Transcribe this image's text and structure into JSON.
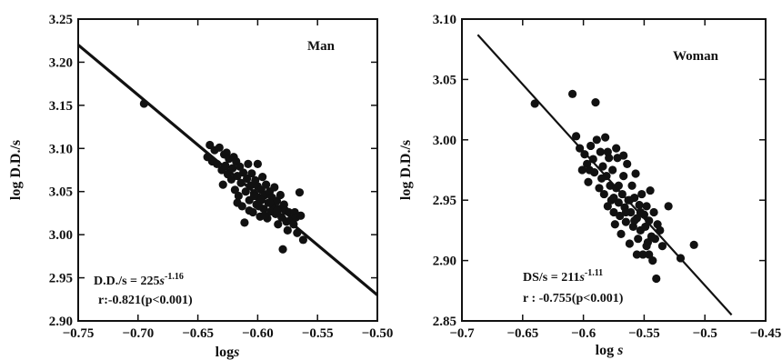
{
  "chart_data": [
    {
      "type": "scatter",
      "panel_label": "Man",
      "xlabel_base": "log",
      "xlabel_var": "s",
      "ylabel": "log D.D./s",
      "xlim": [
        -0.75,
        -0.5
      ],
      "ylim": [
        2.9,
        3.25
      ],
      "x_ticks": [
        -0.75,
        -0.7,
        -0.65,
        -0.6,
        -0.55,
        -0.5
      ],
      "x_tick_labels": [
        "−0.75",
        "−0.70",
        "−0.65",
        "−0.60",
        "−0.55",
        "−0.50"
      ],
      "y_ticks": [
        2.9,
        2.95,
        3.0,
        3.05,
        3.1,
        3.15,
        3.2,
        3.25
      ],
      "y_tick_labels": [
        "2.90",
        "2.95",
        "3.00",
        "3.05",
        "3.10",
        "3.15",
        "3.20",
        "3.25"
      ],
      "equation": {
        "lhs": "D.D./s = 225",
        "var": "s",
        "exp": "-1.16"
      },
      "correlation": "r:-0.821(p<0.001)",
      "fit_line": {
        "x": [
          -0.75,
          -0.5
        ],
        "y": [
          3.22,
          2.93
        ]
      },
      "legend_position": "none",
      "grid": false,
      "points": [
        [
          -0.695,
          3.152
        ],
        [
          -0.642,
          3.09
        ],
        [
          -0.64,
          3.104
        ],
        [
          -0.638,
          3.085
        ],
        [
          -0.636,
          3.098
        ],
        [
          -0.634,
          3.082
        ],
        [
          -0.632,
          3.101
        ],
        [
          -0.63,
          3.075
        ],
        [
          -0.629,
          3.058
        ],
        [
          -0.628,
          3.093
        ],
        [
          -0.627,
          3.08
        ],
        [
          -0.626,
          3.095
        ],
        [
          -0.625,
          3.07
        ],
        [
          -0.624,
          3.088
        ],
        [
          -0.622,
          3.064
        ],
        [
          -0.621,
          3.077
        ],
        [
          -0.62,
          3.09
        ],
        [
          -0.619,
          3.052
        ],
        [
          -0.618,
          3.085
        ],
        [
          -0.617,
          3.068
        ],
        [
          -0.616,
          3.045
        ],
        [
          -0.615,
          3.079
        ],
        [
          -0.614,
          3.06
        ],
        [
          -0.613,
          3.033
        ],
        [
          -0.612,
          3.072
        ],
        [
          -0.611,
          3.014
        ],
        [
          -0.61,
          3.05
        ],
        [
          -0.609,
          3.065
        ],
        [
          -0.608,
          3.082
        ],
        [
          -0.607,
          3.04
        ],
        [
          -0.606,
          3.057
        ],
        [
          -0.605,
          3.071
        ],
        [
          -0.604,
          3.026
        ],
        [
          -0.603,
          3.048
        ],
        [
          -0.602,
          3.063
        ],
        [
          -0.601,
          3.035
        ],
        [
          -0.6,
          3.056
        ],
        [
          -0.6,
          3.082
        ],
        [
          -0.599,
          3.043
        ],
        [
          -0.598,
          3.021
        ],
        [
          -0.597,
          3.052
        ],
        [
          -0.596,
          3.067
        ],
        [
          -0.595,
          3.03
        ],
        [
          -0.594,
          3.046
        ],
        [
          -0.593,
          3.058
        ],
        [
          -0.592,
          3.019
        ],
        [
          -0.591,
          3.037
        ],
        [
          -0.59,
          3.05
        ],
        [
          -0.589,
          3.027
        ],
        [
          -0.588,
          3.043
        ],
        [
          -0.587,
          3.033
        ],
        [
          -0.586,
          3.055
        ],
        [
          -0.585,
          3.024
        ],
        [
          -0.584,
          3.039
        ],
        [
          -0.583,
          3.012
        ],
        [
          -0.582,
          3.03
        ],
        [
          -0.581,
          3.046
        ],
        [
          -0.58,
          3.02
        ],
        [
          -0.579,
          2.983
        ],
        [
          -0.578,
          3.035
        ],
        [
          -0.577,
          3.028
        ],
        [
          -0.576,
          3.015
        ],
        [
          -0.575,
          3.005
        ],
        [
          -0.574,
          3.026
        ],
        [
          -0.572,
          3.018
        ],
        [
          -0.57,
          3.012
        ],
        [
          -0.569,
          3.026
        ],
        [
          -0.568,
          3.02
        ],
        [
          -0.567,
          3.002
        ],
        [
          -0.565,
          3.049
        ],
        [
          -0.564,
          3.022
        ],
        [
          -0.562,
          2.994
        ],
        [
          -0.617,
          3.037
        ],
        [
          -0.607,
          3.028
        ],
        [
          -0.597,
          3.04
        ],
        [
          -0.59,
          3.037
        ],
        [
          -0.584,
          3.028
        ],
        [
          -0.603,
          3.045
        ],
        [
          -0.599,
          3.033
        ],
        [
          -0.594,
          3.022
        ]
      ]
    },
    {
      "type": "scatter",
      "panel_label": "Woman",
      "xlabel_base": "log ",
      "xlabel_var": "s",
      "ylabel": "log D.D./s",
      "xlim": [
        -0.7,
        -0.45
      ],
      "ylim": [
        2.85,
        3.1
      ],
      "x_ticks": [
        -0.7,
        -0.65,
        -0.6,
        -0.55,
        -0.5,
        -0.45
      ],
      "x_tick_labels": [
        "−0.7",
        "−0.65",
        "−0.6",
        "−0.55",
        "−0.5",
        "−0.45"
      ],
      "y_ticks": [
        2.85,
        2.9,
        2.95,
        3.0,
        3.05,
        3.1
      ],
      "y_tick_labels": [
        "2.85",
        "2.90",
        "2.95",
        "3.00",
        "3.05",
        "3.10"
      ],
      "equation": {
        "lhs": "DS/s = 211",
        "var": "s",
        "exp": "-1.11"
      },
      "correlation": "r : -0.755(p<0.001)",
      "fit_line": {
        "x": [
          -0.687,
          -0.478
        ],
        "y": [
          3.087,
          2.855
        ]
      },
      "legend_position": "none",
      "grid": false,
      "points": [
        [
          -0.64,
          3.03
        ],
        [
          -0.609,
          3.038
        ],
        [
          -0.59,
          3.031
        ],
        [
          -0.606,
          3.003
        ],
        [
          -0.603,
          2.993
        ],
        [
          -0.601,
          2.975
        ],
        [
          -0.599,
          2.988
        ],
        [
          -0.597,
          2.98
        ],
        [
          -0.596,
          2.965
        ],
        [
          -0.594,
          2.995
        ],
        [
          -0.592,
          2.984
        ],
        [
          -0.591,
          2.973
        ],
        [
          -0.589,
          3.0
        ],
        [
          -0.587,
          2.96
        ],
        [
          -0.586,
          2.99
        ],
        [
          -0.584,
          2.978
        ],
        [
          -0.583,
          2.955
        ],
        [
          -0.582,
          3.002
        ],
        [
          -0.581,
          2.97
        ],
        [
          -0.58,
          2.945
        ],
        [
          -0.579,
          2.985
        ],
        [
          -0.578,
          2.962
        ],
        [
          -0.577,
          2.95
        ],
        [
          -0.576,
          2.975
        ],
        [
          -0.575,
          2.94
        ],
        [
          -0.574,
          2.93
        ],
        [
          -0.573,
          2.96
        ],
        [
          -0.572,
          2.985
        ],
        [
          -0.571,
          2.948
        ],
        [
          -0.57,
          2.937
        ],
        [
          -0.569,
          2.922
        ],
        [
          -0.568,
          2.955
        ],
        [
          -0.567,
          2.97
        ],
        [
          -0.566,
          2.944
        ],
        [
          -0.565,
          2.932
        ],
        [
          -0.564,
          2.98
        ],
        [
          -0.563,
          2.95
        ],
        [
          -0.562,
          2.914
        ],
        [
          -0.561,
          2.94
        ],
        [
          -0.56,
          2.962
        ],
        [
          -0.559,
          2.928
        ],
        [
          -0.558,
          2.952
        ],
        [
          -0.557,
          2.972
        ],
        [
          -0.556,
          2.935
        ],
        [
          -0.555,
          2.918
        ],
        [
          -0.554,
          2.946
        ],
        [
          -0.553,
          2.925
        ],
        [
          -0.552,
          2.955
        ],
        [
          -0.551,
          2.905
        ],
        [
          -0.55,
          2.938
        ],
        [
          -0.549,
          2.928
        ],
        [
          -0.548,
          2.945
        ],
        [
          -0.547,
          2.915
        ],
        [
          -0.546,
          2.933
        ],
        [
          -0.545,
          2.958
        ],
        [
          -0.544,
          2.92
        ],
        [
          -0.543,
          2.9
        ],
        [
          -0.542,
          2.94
        ],
        [
          -0.541,
          2.918
        ],
        [
          -0.54,
          2.885
        ],
        [
          -0.539,
          2.93
        ],
        [
          -0.537,
          2.925
        ],
        [
          -0.535,
          2.912
        ],
        [
          -0.53,
          2.945
        ],
        [
          -0.52,
          2.902
        ],
        [
          -0.509,
          2.913
        ],
        [
          -0.585,
          2.968
        ],
        [
          -0.575,
          2.952
        ],
        [
          -0.565,
          2.94
        ],
        [
          -0.558,
          2.933
        ],
        [
          -0.548,
          2.912
        ],
        [
          -0.571,
          2.962
        ],
        [
          -0.562,
          2.95
        ],
        [
          -0.553,
          2.94
        ],
        [
          -0.595,
          2.975
        ],
        [
          -0.567,
          2.987
        ],
        [
          -0.573,
          2.993
        ],
        [
          -0.58,
          2.99
        ],
        [
          -0.556,
          2.905
        ],
        [
          -0.546,
          2.905
        ]
      ]
    }
  ]
}
